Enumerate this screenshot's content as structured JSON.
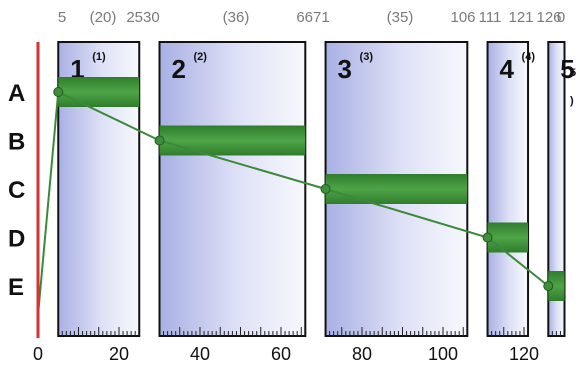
{
  "top_labels": [
    "5",
    "(20)",
    "2530",
    "(36)",
    "6671",
    "(35)",
    "106",
    "111",
    "121",
    "126",
    "0"
  ],
  "rows": [
    "A",
    "B",
    "C",
    "D",
    "E"
  ],
  "blocks": [
    {
      "num": "1",
      "sub": "(1)",
      "start": 5,
      "end": 25,
      "row": 0
    },
    {
      "num": "2",
      "sub": "(2)",
      "start": 30,
      "end": 66,
      "row": 1
    },
    {
      "num": "3",
      "sub": "(3)",
      "start": 71,
      "end": 106,
      "row": 2
    },
    {
      "num": "4",
      "sub": "(4)",
      "start": 111,
      "end": 121,
      "row": 3
    },
    {
      "num": "5",
      "sub": "(",
      "start": 126,
      "end": 130,
      "row": 4
    }
  ],
  "right_edge_marks": [
    "5",
    ")"
  ],
  "path_points": [
    {
      "x": 0,
      "row": 4.6
    },
    {
      "x": 5,
      "row": 0
    },
    {
      "x": 30,
      "row": 1
    },
    {
      "x": 71,
      "row": 2
    },
    {
      "x": 111,
      "row": 3
    },
    {
      "x": 126,
      "row": 4
    }
  ],
  "axis": {
    "ticks": [
      "0",
      "20",
      "40",
      "60",
      "80",
      "100",
      "120"
    ],
    "min": 0,
    "max": 130
  },
  "colors": {
    "band": "#3f8f3a",
    "line": "#3a8a3a",
    "axis": "#d93030"
  }
}
